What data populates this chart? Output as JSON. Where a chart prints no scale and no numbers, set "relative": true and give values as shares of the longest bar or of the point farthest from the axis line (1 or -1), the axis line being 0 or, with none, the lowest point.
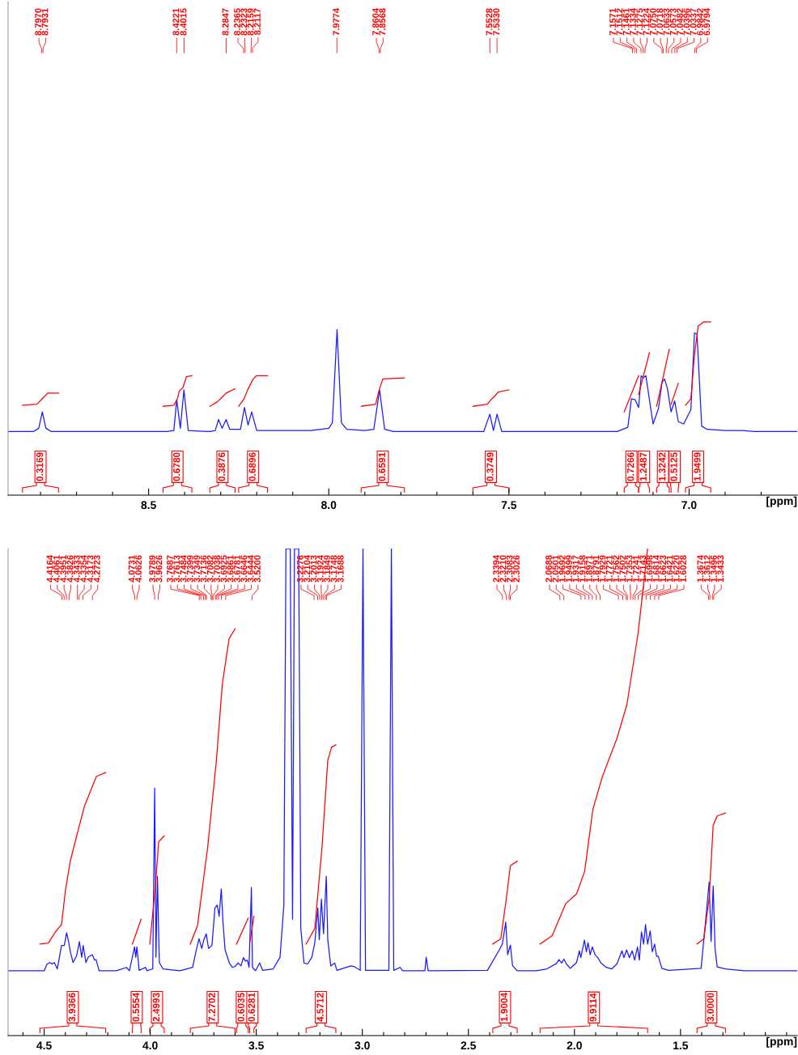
{
  "chart_data": [
    {
      "type": "line",
      "relative": true,
      "xlabel": "[ppm]",
      "xlim": [
        8.89,
        6.7
      ],
      "tick_labels": "x",
      "grid": false,
      "legend": false,
      "line_style": "solid",
      "xticks": [
        {
          "value": 8.8,
          "label": null
        },
        {
          "value": 8.7,
          "label": null
        },
        {
          "value": 8.6,
          "label": null
        },
        8.5,
        {
          "value": 8.4,
          "label": null
        },
        {
          "value": 8.3,
          "label": null
        },
        {
          "value": 8.2,
          "label": null
        },
        {
          "value": 8.1,
          "label": null
        },
        {
          "value": 8,
          "label": "8.0"
        },
        {
          "value": 7.9,
          "label": null
        },
        {
          "value": 7.8,
          "label": null
        },
        {
          "value": 7.7,
          "label": null
        },
        {
          "value": 7.6,
          "label": null
        },
        7.5,
        {
          "value": 7.4,
          "label": null
        },
        {
          "value": 7.3,
          "label": null
        },
        {
          "value": 7.2,
          "label": null
        },
        {
          "value": 7.1,
          "label": null
        },
        {
          "value": 7,
          "label": "7.0"
        },
        {
          "value": 6.9,
          "label": null
        },
        {
          "value": 6.8,
          "label": null
        }
      ],
      "series": [
        {
          "color": "#1a1aff",
          "x": [
            8.89,
            8.82,
            8.805,
            8.795,
            8.785,
            8.77,
            8.45,
            8.43,
            8.422,
            8.412,
            8.402,
            8.39,
            8.33,
            8.315,
            8.306,
            8.296,
            8.285,
            8.275,
            8.245,
            8.234,
            8.224,
            8.214,
            8.2,
            8.05,
            8.0,
            7.99,
            7.977,
            7.965,
            7.95,
            7.9,
            7.875,
            7.859,
            7.845,
            7.82,
            7.57,
            7.553,
            7.543,
            7.533,
            7.52,
            7.2,
            7.17,
            7.16,
            7.15,
            7.14,
            7.133,
            7.127,
            7.12,
            7.1,
            7.085,
            7.075,
            7.068,
            7.06,
            7.05,
            7.04,
            7.03,
            7.015,
            6.995,
            6.985,
            6.978,
            6.965,
            6.95,
            6.9,
            6.85,
            6.82,
            6.7
          ],
          "values": [
            0.367,
            0.367,
            0.386,
            0.481,
            0.386,
            0.367,
            0.367,
            0.373,
            0.551,
            0.386,
            0.608,
            0.373,
            0.367,
            0.373,
            0.437,
            0.386,
            0.437,
            0.38,
            0.38,
            0.506,
            0.405,
            0.481,
            0.373,
            0.373,
            0.386,
            0.418,
            0.956,
            0.418,
            0.38,
            0.373,
            0.38,
            0.608,
            0.38,
            0.367,
            0.367,
            0.468,
            0.373,
            0.468,
            0.367,
            0.367,
            0.392,
            0.557,
            0.551,
            0.506,
            0.69,
            0.677,
            0.69,
            0.411,
            0.5,
            0.652,
            0.671,
            0.614,
            0.481,
            0.544,
            0.424,
            0.411,
            0.494,
            0.937,
            0.93,
            0.399,
            0.38,
            0.373,
            0.373,
            0.367,
            0.367
          ]
        },
        {
          "name": "0.3169",
          "color": "#ff0000",
          "x": [
            8.85,
            8.81,
            8.795,
            8.78,
            8.75
          ],
          "values": [
            0.519,
            0.525,
            0.557,
            0.589,
            0.589
          ]
        },
        {
          "name": "0.6780",
          "color": "#ff0000",
          "x": [
            8.46,
            8.43,
            8.42,
            8.415,
            8.405,
            8.395,
            8.38
          ],
          "values": [
            0.513,
            0.519,
            0.557,
            0.601,
            0.62,
            0.684,
            0.69
          ]
        },
        {
          "name": "0.3876",
          "color": "#ff0000",
          "x": [
            8.33,
            8.31,
            8.3,
            8.285,
            8.26
          ],
          "values": [
            0.513,
            0.538,
            0.557,
            0.589,
            0.614
          ]
        },
        {
          "name": "0.6896",
          "color": "#ff0000",
          "x": [
            8.25,
            8.235,
            8.225,
            8.21,
            8.2,
            8.17
          ],
          "values": [
            0.513,
            0.557,
            0.608,
            0.671,
            0.69,
            0.69
          ]
        },
        {
          "name": "0.6591",
          "color": "#ff0000",
          "x": [
            7.91,
            7.87,
            7.86,
            7.85,
            7.79
          ],
          "values": [
            0.513,
            0.525,
            0.608,
            0.671,
            0.677
          ]
        },
        {
          "name": "0.3749",
          "color": "#ff0000",
          "x": [
            7.6,
            7.56,
            7.55,
            7.54,
            7.53,
            7.5
          ],
          "values": [
            0.513,
            0.525,
            0.551,
            0.57,
            0.595,
            0.608
          ]
        },
        {
          "name": "0.7266",
          "color": "#ff0000",
          "x": [
            7.18,
            7.14
          ],
          "values": [
            0.481,
            0.69
          ]
        },
        {
          "name": "1.2487",
          "color": "#ff0000",
          "x": [
            7.14,
            7.11
          ],
          "values": [
            0.582,
            0.823
          ]
        },
        {
          "name": "1.3242",
          "color": "#ff0000",
          "x": [
            7.09,
            7.055
          ],
          "values": [
            0.513,
            0.842
          ]
        },
        {
          "name": "0.5125",
          "color": "#ff0000",
          "x": [
            7.05,
            7.03
          ],
          "values": [
            0.525,
            0.646
          ]
        },
        {
          "name": "1.9499",
          "color": "#ff0000",
          "x": [
            7.01,
            6.995,
            6.985,
            6.975,
            6.96,
            6.94
          ],
          "values": [
            0.519,
            0.557,
            0.81,
            0.975,
            1.0,
            1.0
          ]
        }
      ],
      "annotations": [
        {
          "text": "8.7970",
          "x": 8.797
        },
        {
          "text": "8.7931",
          "x": 8.7931
        },
        {
          "text": "8.4221",
          "x": 8.4221
        },
        {
          "text": "8.4015",
          "x": 8.4015
        },
        {
          "text": "8.2847",
          "x": 8.2847
        },
        {
          "text": "8.2365",
          "x": 8.2365
        },
        {
          "text": "8.2323",
          "x": 8.2323
        },
        {
          "text": "8.2159",
          "x": 8.2159
        },
        {
          "text": "8.2117",
          "x": 8.2117
        },
        {
          "text": "7.9774",
          "x": 7.9774
        },
        {
          "text": "7.8604",
          "x": 7.8604
        },
        {
          "text": "7.8568",
          "x": 7.8568
        },
        {
          "text": "7.5528",
          "x": 7.5528
        },
        {
          "text": "7.5330",
          "x": 7.533
        },
        {
          "text": "7.1571",
          "x": 7.1571
        },
        {
          "text": "7.1512",
          "x": 7.1512
        },
        {
          "text": "7.1461",
          "x": 7.1461
        },
        {
          "text": "7.1334",
          "x": 7.1334
        },
        {
          "text": "7.1275",
          "x": 7.1275
        },
        {
          "text": "7.1224",
          "x": 7.1224
        },
        {
          "text": "7.0750",
          "x": 7.075
        },
        {
          "text": "7.0718",
          "x": 7.0718
        },
        {
          "text": "7.0633",
          "x": 7.0633
        },
        {
          "text": "7.0573",
          "x": 7.0573
        },
        {
          "text": "7.0482",
          "x": 7.0482
        },
        {
          "text": "7.0396",
          "x": 7.0396
        },
        {
          "text": "7.0337",
          "x": 7.0337
        },
        {
          "text": "6.9842",
          "x": 6.9842
        },
        {
          "text": "6.9794",
          "x": 6.9794
        }
      ]
    },
    {
      "type": "line",
      "relative": true,
      "xlabel": "[ppm]",
      "xlim": [
        4.67,
        0.95
      ],
      "tick_labels": "x",
      "grid": false,
      "legend": false,
      "line_style": "solid",
      "xticks": [
        {
          "value": 4.6,
          "label": null
        },
        4.5,
        {
          "value": 4.4,
          "label": null
        },
        {
          "value": 4.3,
          "label": null
        },
        {
          "value": 4.2,
          "label": null
        },
        {
          "value": 4.1,
          "label": null
        },
        {
          "value": 4,
          "label": "4.0"
        },
        {
          "value": 3.9,
          "label": null
        },
        {
          "value": 3.8,
          "label": null
        },
        {
          "value": 3.7,
          "label": null
        },
        {
          "value": 3.6,
          "label": null
        },
        3.5,
        {
          "value": 3.4,
          "label": null
        },
        {
          "value": 3.3,
          "label": null
        },
        {
          "value": 3.2,
          "label": null
        },
        {
          "value": 3.1,
          "label": null
        },
        {
          "value": 3,
          "label": "3.0"
        },
        {
          "value": 2.9,
          "label": null
        },
        {
          "value": 2.8,
          "label": null
        },
        {
          "value": 2.7,
          "label": null
        },
        {
          "value": 2.6,
          "label": null
        },
        2.5,
        {
          "value": 2.4,
          "label": null
        },
        {
          "value": 2.3,
          "label": null
        },
        {
          "value": 2.2,
          "label": null
        },
        {
          "value": 2.1,
          "label": null
        },
        {
          "value": 2,
          "label": "2.0"
        },
        {
          "value": 1.9,
          "label": null
        },
        {
          "value": 1.8,
          "label": null
        },
        {
          "value": 1.7,
          "label": null
        },
        {
          "value": 1.6,
          "label": null
        },
        1.5,
        {
          "value": 1.4,
          "label": null
        },
        {
          "value": 1.3,
          "label": null
        },
        {
          "value": 1.2,
          "label": null
        },
        {
          "value": 1.1,
          "label": null
        },
        {
          "value": 1,
          "label": null
        }
      ],
      "series": [
        {
          "color": "#1a1aff",
          "x": [
            4.67,
            4.5,
            4.486,
            4.473,
            4.462,
            4.452,
            4.438,
            4.418,
            4.405,
            4.394,
            4.384,
            4.377,
            4.364,
            4.347,
            4.334,
            4.323,
            4.316,
            4.303,
            4.292,
            4.273,
            4.262,
            4.255,
            4.241,
            4.16,
            4.112,
            4.098,
            4.074,
            4.068,
            4.063,
            4.052,
            4.022,
            4.015,
            3.988,
            3.979,
            3.973,
            3.966,
            3.957,
            3.94,
            3.86,
            3.8,
            3.784,
            3.77,
            3.757,
            3.747,
            3.736,
            3.725,
            3.709,
            3.695,
            3.684,
            3.675,
            3.665,
            3.657,
            3.647,
            3.627,
            3.613,
            3.6,
            3.586,
            3.572,
            3.561,
            3.551,
            3.542,
            3.534,
            3.523,
            3.518,
            3.504,
            3.484,
            3.47,
            3.42,
            3.388,
            3.37,
            3.36,
            3.34,
            3.329,
            3.32,
            3.3,
            3.29,
            3.275,
            3.258,
            3.238,
            3.224,
            3.21,
            3.203,
            3.193,
            3.183,
            3.17,
            3.163,
            3.149,
            3.13,
            3.12,
            3.054,
            3.04,
            3.01,
            2.997,
            2.985,
            2.875,
            2.863,
            2.852,
            2.822,
            2.81,
            2.705,
            2.699,
            2.69,
            2.41,
            2.353,
            2.34,
            2.324,
            2.315,
            2.302,
            2.292,
            2.27,
            2.18,
            2.13,
            2.085,
            2.073,
            2.06,
            2.05,
            2.038,
            2.02,
            1.99,
            1.977,
            1.97,
            1.953,
            1.944,
            1.936,
            1.926,
            1.916,
            1.903,
            1.89,
            1.875,
            1.85,
            1.824,
            1.8,
            1.776,
            1.767,
            1.754,
            1.741,
            1.728,
            1.716,
            1.703,
            1.694,
            1.684,
            1.674,
            1.665,
            1.655,
            1.643,
            1.633,
            1.622,
            1.613,
            1.605,
            1.588,
            1.556,
            1.403,
            1.38,
            1.365,
            1.356,
            1.346,
            1.337,
            1.327,
            1.288,
            1.2,
            0.95
          ],
          "values": [
            0.133,
            0.133,
            0.147,
            0.15,
            0.147,
            0.15,
            0.137,
            0.185,
            0.185,
            0.211,
            0.191,
            0.173,
            0.15,
            0.164,
            0.193,
            0.161,
            0.185,
            0.15,
            0.161,
            0.166,
            0.155,
            0.156,
            0.133,
            0.133,
            0.14,
            0.133,
            0.182,
            0.161,
            0.182,
            0.134,
            0.14,
            0.133,
            0.137,
            0.508,
            0.161,
            0.327,
            0.15,
            0.137,
            0.133,
            0.14,
            0.173,
            0.199,
            0.179,
            0.197,
            0.209,
            0.179,
            0.185,
            0.262,
            0.268,
            0.245,
            0.301,
            0.233,
            0.176,
            0.149,
            0.14,
            0.142,
            0.149,
            0.143,
            0.16,
            0.153,
            0.155,
            0.14,
            0.304,
            0.14,
            0.133,
            0.149,
            0.134,
            0.137,
            0.161,
            0.268,
            1.0,
            1.0,
            0.239,
            1.0,
            1.0,
            0.219,
            0.149,
            0.147,
            0.161,
            0.191,
            0.262,
            0.197,
            0.28,
            0.209,
            0.327,
            0.197,
            0.143,
            0.149,
            0.134,
            0.143,
            0.142,
            0.134,
            1.0,
            0.134,
            0.134,
            1.0,
            0.134,
            0.14,
            0.133,
            0.133,
            0.161,
            0.133,
            0.134,
            0.177,
            0.188,
            0.233,
            0.166,
            0.186,
            0.144,
            0.133,
            0.133,
            0.137,
            0.148,
            0.156,
            0.149,
            0.157,
            0.147,
            0.138,
            0.15,
            0.174,
            0.16,
            0.196,
            0.172,
            0.191,
            0.166,
            0.182,
            0.166,
            0.16,
            0.149,
            0.14,
            0.137,
            0.147,
            0.174,
            0.16,
            0.176,
            0.16,
            0.174,
            0.155,
            0.182,
            0.155,
            0.213,
            0.188,
            0.228,
            0.188,
            0.215,
            0.172,
            0.188,
            0.163,
            0.163,
            0.138,
            0.134,
            0.138,
            0.244,
            0.315,
            0.193,
            0.307,
            0.177,
            0.141,
            0.137,
            0.133,
            0.133
          ]
        },
        {
          "name": "3.9366",
          "color": "#ff0000",
          "x": [
            4.52,
            4.48,
            4.445,
            4.418,
            4.4,
            4.377,
            4.336,
            4.31,
            4.254,
            4.21
          ],
          "values": [
            0.188,
            0.19,
            0.214,
            0.228,
            0.297,
            0.358,
            0.428,
            0.471,
            0.532,
            0.54
          ]
        },
        {
          "name": "0.5554",
          "color": "#ff0000",
          "x": [
            4.084,
            4.063,
            4.043
          ],
          "values": [
            0.188,
            0.214,
            0.239
          ]
        },
        {
          "name": "2.4993",
          "color": "#ff0000",
          "x": [
            4.002,
            3.975,
            3.96,
            3.934
          ],
          "values": [
            0.188,
            0.31,
            0.398,
            0.41
          ]
        },
        {
          "name": "7.2702",
          "color": "#ff0000",
          "x": [
            3.811,
            3.777,
            3.729,
            3.688,
            3.66,
            3.628,
            3.6
          ],
          "values": [
            0.188,
            0.226,
            0.387,
            0.565,
            0.722,
            0.815,
            0.835
          ]
        },
        {
          "name": "0.6035",
          "color": "#ff0000",
          "x": [
            3.593,
            3.538
          ],
          "values": [
            0.188,
            0.241
          ]
        },
        {
          "name": "0.6281",
          "color": "#ff0000",
          "x": [
            3.531,
            3.511
          ],
          "values": [
            0.19,
            0.245
          ]
        },
        {
          "name": "4.5712",
          "color": "#ff0000",
          "x": [
            3.265,
            3.224,
            3.19,
            3.163,
            3.145,
            3.125
          ],
          "values": [
            0.188,
            0.22,
            0.387,
            0.565,
            0.592,
            0.597
          ]
        },
        {
          "name": "1.9004",
          "color": "#ff0000",
          "x": [
            2.385,
            2.347,
            2.321,
            2.302,
            2.27
          ],
          "values": [
            0.188,
            0.199,
            0.282,
            0.349,
            0.358
          ]
        },
        {
          "name": "9.9114",
          "color": "#ff0000",
          "x": [
            2.162,
            2.105,
            2.041,
            1.99,
            1.952,
            1.913,
            1.868,
            1.8,
            1.753,
            1.7,
            1.655
          ],
          "values": [
            0.188,
            0.205,
            0.271,
            0.291,
            0.337,
            0.465,
            0.532,
            0.61,
            0.679,
            0.826,
            1.0
          ]
        },
        {
          "name": "3.0000",
          "color": "#ff0000",
          "x": [
            1.422,
            1.39,
            1.365,
            1.346,
            1.327,
            1.288
          ],
          "values": [
            0.188,
            0.199,
            0.282,
            0.432,
            0.451,
            0.457
          ]
        }
      ],
      "annotations": [
        {
          "text": "4.4164",
          "x": 4.4164
        },
        {
          "text": "4.4061",
          "x": 4.4061
        },
        {
          "text": "4.3951",
          "x": 4.3951
        },
        {
          "text": "4.3826",
          "x": 4.3826
        },
        {
          "text": "4.3433",
          "x": 4.3433
        },
        {
          "text": "4.3354",
          "x": 4.3354
        },
        {
          "text": "4.3173",
          "x": 4.3173
        },
        {
          "text": "4.2723",
          "x": 4.2723
        },
        {
          "text": "4.0731",
          "x": 4.0731
        },
        {
          "text": "4.0626",
          "x": 4.0626
        },
        {
          "text": "3.9789",
          "x": 3.9789
        },
        {
          "text": "3.9626",
          "x": 3.9626
        },
        {
          "text": "3.7687",
          "x": 3.7687
        },
        {
          "text": "3.7613",
          "x": 3.7613
        },
        {
          "text": "3.7484",
          "x": 3.7484
        },
        {
          "text": "3.7399",
          "x": 3.7399
        },
        {
          "text": "3.7349",
          "x": 3.7349
        },
        {
          "text": "3.7136",
          "x": 3.7136
        },
        {
          "text": "3.7082",
          "x": 3.7082
        },
        {
          "text": "3.7038",
          "x": 3.7038
        },
        {
          "text": "3.6925",
          "x": 3.6925
        },
        {
          "text": "3.6861",
          "x": 3.6861
        },
        {
          "text": "3.6781",
          "x": 3.6781
        },
        {
          "text": "3.6646",
          "x": 3.6646
        },
        {
          "text": "3.6444",
          "x": 3.6444
        },
        {
          "text": "3.5200",
          "x": 3.52
        },
        {
          "text": "3.2276",
          "x": 3.2276
        },
        {
          "text": "3.2104",
          "x": 3.2104
        },
        {
          "text": "3.2013",
          "x": 3.2013
        },
        {
          "text": "3.1924",
          "x": 3.1924
        },
        {
          "text": "3.1849",
          "x": 3.1849
        },
        {
          "text": "3.1748",
          "x": 3.1748
        },
        {
          "text": "3.1688",
          "x": 3.1688
        },
        {
          "text": "2.3394",
          "x": 2.3394
        },
        {
          "text": "2.3210",
          "x": 2.321
        },
        {
          "text": "2.3083",
          "x": 2.3083
        },
        {
          "text": "2.3026",
          "x": 2.3026
        },
        {
          "text": "2.0688",
          "x": 2.0688
        },
        {
          "text": "2.0501",
          "x": 2.0501
        },
        {
          "text": "1.9692",
          "x": 1.9692
        },
        {
          "text": "1.9499",
          "x": 1.9499
        },
        {
          "text": "1.9317",
          "x": 1.9317
        },
        {
          "text": "1.9158",
          "x": 1.9158
        },
        {
          "text": "1.8971",
          "x": 1.8971
        },
        {
          "text": "1.8791",
          "x": 1.8791
        },
        {
          "text": "1.7929",
          "x": 1.7929
        },
        {
          "text": "1.7721",
          "x": 1.7721
        },
        {
          "text": "1.7562",
          "x": 1.7562
        },
        {
          "text": "1.7502",
          "x": 1.7502
        },
        {
          "text": "1.7353",
          "x": 1.7353
        },
        {
          "text": "1.7241",
          "x": 1.7241
        },
        {
          "text": "1.7143",
          "x": 1.7143
        },
        {
          "text": "1.6998",
          "x": 1.6998
        },
        {
          "text": "1.6814",
          "x": 1.6814
        },
        {
          "text": "1.6623",
          "x": 1.6623
        },
        {
          "text": "1.6421",
          "x": 1.6421
        },
        {
          "text": "1.6220",
          "x": 1.622
        },
        {
          "text": "1.6028",
          "x": 1.6028
        },
        {
          "text": "1.3674",
          "x": 1.3674
        },
        {
          "text": "1.3612",
          "x": 1.3612
        },
        {
          "text": "1.3496",
          "x": 1.3496
        },
        {
          "text": "1.3433",
          "x": 1.3433
        }
      ]
    }
  ]
}
